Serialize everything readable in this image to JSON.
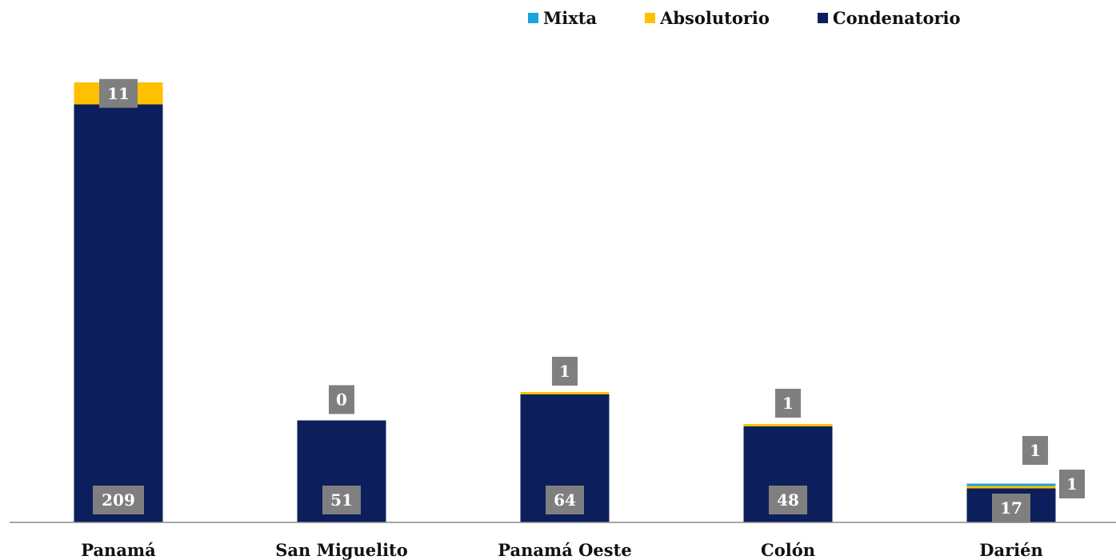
{
  "chart_data": {
    "type": "bar",
    "stacked": true,
    "categories": [
      "Panamá",
      "San Miguelito",
      "Panamá Oeste",
      "Colón",
      "Darién"
    ],
    "series": [
      {
        "name": "Condenatorio",
        "values": [
          209,
          51,
          64,
          48,
          17
        ],
        "color": "#0c1f5c"
      },
      {
        "name": "Absolutorio",
        "values": [
          11,
          0,
          1,
          1,
          1
        ],
        "color": "#ffc000"
      },
      {
        "name": "Mixta",
        "values": [
          0,
          0,
          0,
          0,
          1
        ],
        "color": "#1aa3dc"
      }
    ],
    "data_labels": {
      "Condenatorio": [
        "209",
        "51",
        "64",
        "48",
        "17"
      ],
      "Absolutorio": [
        "11",
        "0",
        "1",
        "1",
        "1"
      ],
      "Mixta": [
        "",
        "",
        "",
        "",
        "1"
      ]
    },
    "legend_order": [
      "Mixta",
      "Absolutorio",
      "Condenatorio"
    ],
    "legend_position": "top-right",
    "label_box_color": "#7f7f7f",
    "axis_color": "#888888",
    "grid": false,
    "ylim": [
      0,
      230
    ]
  }
}
